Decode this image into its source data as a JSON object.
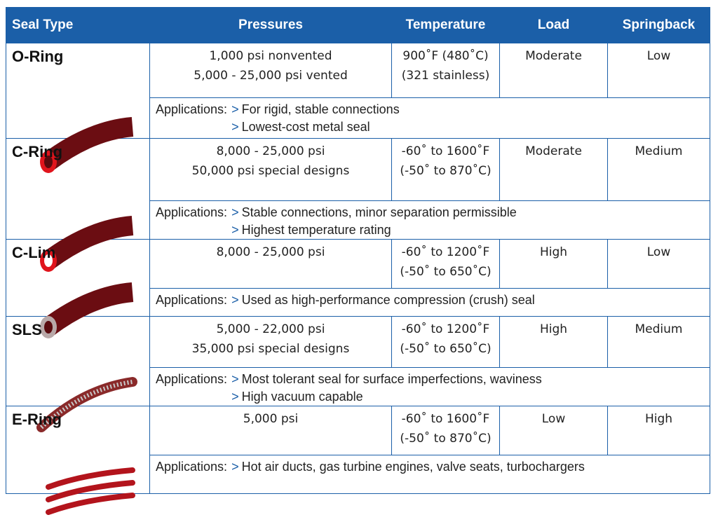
{
  "header": {
    "columns": [
      "Seal Type",
      "Pressures",
      "Temperature",
      "Load",
      "Springback"
    ]
  },
  "rows": [
    {
      "name": "O-Ring",
      "pressures": [
        "1,000 psi nonvented",
        "5,000 - 25,000 psi vented"
      ],
      "temperature": [
        "900˚F (480˚C)",
        "(321 stainless)"
      ],
      "load": "Moderate",
      "springback": "Low",
      "applications": {
        "label": "Applications:",
        "items": [
          {
            "marker": ">",
            "text": "For rigid, stable connections"
          },
          {
            "marker": ">",
            "text": "Lowest-cost metal seal"
          }
        ]
      }
    },
    {
      "name": "C-Ring",
      "pressures": [
        "8,000 - 25,000 psi",
        "50,000 psi special designs"
      ],
      "temperature": [
        "-60˚ to 1600˚F",
        "(-50˚ to 870˚C)"
      ],
      "load": "Moderate",
      "springback": "Medium",
      "applications": {
        "label": "Applications:",
        "items": [
          {
            "marker": ">",
            "text": "Stable connections, minor separation permissible"
          },
          {
            "marker": ">",
            "text": "Highest temperature rating"
          }
        ]
      }
    },
    {
      "name": "C-Lim",
      "pressures": [
        "8,000 - 25,000 psi"
      ],
      "temperature": [
        "-60˚ to 1200˚F",
        "(-50˚ to 650˚C)"
      ],
      "load": "High",
      "springback": "Low",
      "applications": {
        "label": "Applications:",
        "items": [
          {
            "marker": ">",
            "text": "Used as high-performance compression (crush) seal"
          }
        ]
      }
    },
    {
      "name": "SLS",
      "pressures": [
        "5,000 - 22,000 psi",
        "35,000 psi special designs"
      ],
      "temperature": [
        "-60˚ to 1200˚F",
        "(-50˚ to 650˚C)"
      ],
      "load": "High",
      "springback": "Medium",
      "applications": {
        "label": "Applications:",
        "items": [
          {
            "marker": ">",
            "text": "Most tolerant seal for surface imperfections, waviness"
          },
          {
            "marker": ">",
            "text": "High vacuum capable"
          }
        ]
      }
    },
    {
      "name": "E-Ring",
      "pressures": [
        "5,000 psi"
      ],
      "temperature": [
        "-60˚ to 1600˚F",
        "(-50˚ to 870˚C)"
      ],
      "load": "Low",
      "springback": "High",
      "applications": {
        "label": "Applications:",
        "items": [
          {
            "marker": ">",
            "text": "Hot air ducts, gas turbine engines, valve seats, turbochargers"
          }
        ]
      }
    }
  ]
}
